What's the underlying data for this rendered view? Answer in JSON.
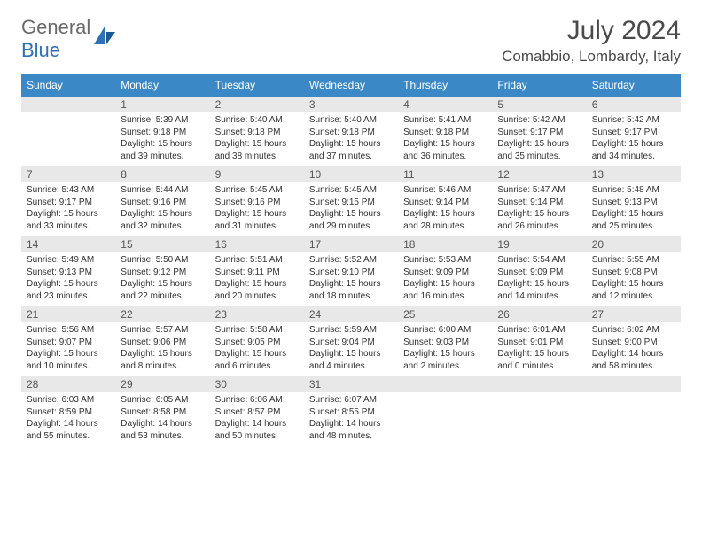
{
  "brand": {
    "part1": "General",
    "part2": "Blue"
  },
  "title": "July 2024",
  "location": "Comabbio, Lombardy, Italy",
  "colors": {
    "header_bg": "#3b88c7",
    "header_text": "#ffffff",
    "daynum_bg": "#e8e8e8",
    "row_border": "#3b88c7",
    "brand_gray": "#6a6a6a",
    "brand_blue": "#2d72b5",
    "body_text": "#333333",
    "page_bg": "#ffffff"
  },
  "weekdays": [
    "Sunday",
    "Monday",
    "Tuesday",
    "Wednesday",
    "Thursday",
    "Friday",
    "Saturday"
  ],
  "start_weekday": 1,
  "days": [
    {
      "n": 1,
      "sunrise": "5:39 AM",
      "sunset": "9:18 PM",
      "daylight": "15 hours and 39 minutes."
    },
    {
      "n": 2,
      "sunrise": "5:40 AM",
      "sunset": "9:18 PM",
      "daylight": "15 hours and 38 minutes."
    },
    {
      "n": 3,
      "sunrise": "5:40 AM",
      "sunset": "9:18 PM",
      "daylight": "15 hours and 37 minutes."
    },
    {
      "n": 4,
      "sunrise": "5:41 AM",
      "sunset": "9:18 PM",
      "daylight": "15 hours and 36 minutes."
    },
    {
      "n": 5,
      "sunrise": "5:42 AM",
      "sunset": "9:17 PM",
      "daylight": "15 hours and 35 minutes."
    },
    {
      "n": 6,
      "sunrise": "5:42 AM",
      "sunset": "9:17 PM",
      "daylight": "15 hours and 34 minutes."
    },
    {
      "n": 7,
      "sunrise": "5:43 AM",
      "sunset": "9:17 PM",
      "daylight": "15 hours and 33 minutes."
    },
    {
      "n": 8,
      "sunrise": "5:44 AM",
      "sunset": "9:16 PM",
      "daylight": "15 hours and 32 minutes."
    },
    {
      "n": 9,
      "sunrise": "5:45 AM",
      "sunset": "9:16 PM",
      "daylight": "15 hours and 31 minutes."
    },
    {
      "n": 10,
      "sunrise": "5:45 AM",
      "sunset": "9:15 PM",
      "daylight": "15 hours and 29 minutes."
    },
    {
      "n": 11,
      "sunrise": "5:46 AM",
      "sunset": "9:14 PM",
      "daylight": "15 hours and 28 minutes."
    },
    {
      "n": 12,
      "sunrise": "5:47 AM",
      "sunset": "9:14 PM",
      "daylight": "15 hours and 26 minutes."
    },
    {
      "n": 13,
      "sunrise": "5:48 AM",
      "sunset": "9:13 PM",
      "daylight": "15 hours and 25 minutes."
    },
    {
      "n": 14,
      "sunrise": "5:49 AM",
      "sunset": "9:13 PM",
      "daylight": "15 hours and 23 minutes."
    },
    {
      "n": 15,
      "sunrise": "5:50 AM",
      "sunset": "9:12 PM",
      "daylight": "15 hours and 22 minutes."
    },
    {
      "n": 16,
      "sunrise": "5:51 AM",
      "sunset": "9:11 PM",
      "daylight": "15 hours and 20 minutes."
    },
    {
      "n": 17,
      "sunrise": "5:52 AM",
      "sunset": "9:10 PM",
      "daylight": "15 hours and 18 minutes."
    },
    {
      "n": 18,
      "sunrise": "5:53 AM",
      "sunset": "9:09 PM",
      "daylight": "15 hours and 16 minutes."
    },
    {
      "n": 19,
      "sunrise": "5:54 AM",
      "sunset": "9:09 PM",
      "daylight": "15 hours and 14 minutes."
    },
    {
      "n": 20,
      "sunrise": "5:55 AM",
      "sunset": "9:08 PM",
      "daylight": "15 hours and 12 minutes."
    },
    {
      "n": 21,
      "sunrise": "5:56 AM",
      "sunset": "9:07 PM",
      "daylight": "15 hours and 10 minutes."
    },
    {
      "n": 22,
      "sunrise": "5:57 AM",
      "sunset": "9:06 PM",
      "daylight": "15 hours and 8 minutes."
    },
    {
      "n": 23,
      "sunrise": "5:58 AM",
      "sunset": "9:05 PM",
      "daylight": "15 hours and 6 minutes."
    },
    {
      "n": 24,
      "sunrise": "5:59 AM",
      "sunset": "9:04 PM",
      "daylight": "15 hours and 4 minutes."
    },
    {
      "n": 25,
      "sunrise": "6:00 AM",
      "sunset": "9:03 PM",
      "daylight": "15 hours and 2 minutes."
    },
    {
      "n": 26,
      "sunrise": "6:01 AM",
      "sunset": "9:01 PM",
      "daylight": "15 hours and 0 minutes."
    },
    {
      "n": 27,
      "sunrise": "6:02 AM",
      "sunset": "9:00 PM",
      "daylight": "14 hours and 58 minutes."
    },
    {
      "n": 28,
      "sunrise": "6:03 AM",
      "sunset": "8:59 PM",
      "daylight": "14 hours and 55 minutes."
    },
    {
      "n": 29,
      "sunrise": "6:05 AM",
      "sunset": "8:58 PM",
      "daylight": "14 hours and 53 minutes."
    },
    {
      "n": 30,
      "sunrise": "6:06 AM",
      "sunset": "8:57 PM",
      "daylight": "14 hours and 50 minutes."
    },
    {
      "n": 31,
      "sunrise": "6:07 AM",
      "sunset": "8:55 PM",
      "daylight": "14 hours and 48 minutes."
    }
  ],
  "labels": {
    "sunrise_prefix": "Sunrise: ",
    "sunset_prefix": "Sunset: ",
    "daylight_prefix": "Daylight: "
  }
}
